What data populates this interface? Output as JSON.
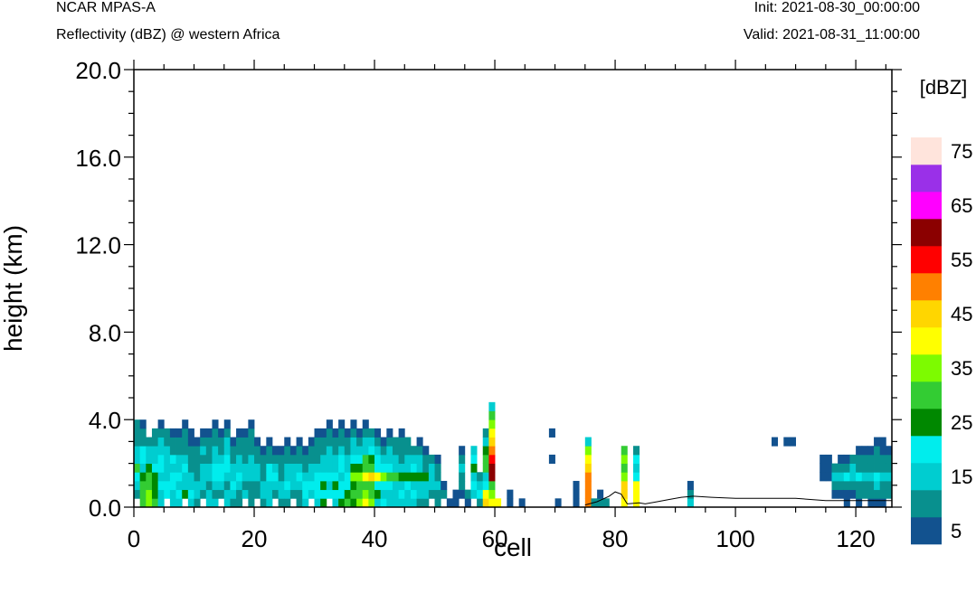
{
  "header": {
    "model": "NCAR MPAS-A",
    "field": "Reflectivity (dBZ) @ western Africa",
    "init": "Init: 2021-08-30_00:00:00",
    "valid": "Valid: 2021-08-31_11:00:00"
  },
  "chart_data": {
    "type": "heatmap",
    "title": "",
    "xlabel": "cell",
    "ylabel": "height (km)",
    "xlim": [
      0,
      126
    ],
    "ylim": [
      0,
      20
    ],
    "x_ticks": [
      "0",
      "20",
      "40",
      "60",
      "80",
      "100",
      "120"
    ],
    "y_ticks": [
      "0.0",
      "4.0",
      "8.0",
      "12.0",
      "16.0",
      "20.0"
    ],
    "grid": false,
    "colorbar": {
      "title": "[dBZ]",
      "placement": "right",
      "levels": [
        5,
        10,
        15,
        20,
        25,
        30,
        35,
        40,
        45,
        50,
        55,
        60,
        65,
        70,
        75
      ],
      "labels": [
        "5",
        "15",
        "25",
        "35",
        "45",
        "55",
        "65",
        "75"
      ],
      "colors": [
        "#12528f",
        "#08908e",
        "#00cdd0",
        "#00eded",
        "#008800",
        "#33cc33",
        "#7dfb00",
        "#ffff00",
        "#ffd600",
        "#ff8000",
        "#ff0000",
        "#8b0000",
        "#ff00ff",
        "#9a30e8",
        "#ffe4dc"
      ]
    },
    "cell_height_km": 0.4,
    "columns": [
      {
        "x": 0,
        "b": 1,
        "t": 10,
        "v": [
          10,
          15,
          20,
          30,
          15,
          15,
          10,
          10,
          10,
          5
        ]
      },
      {
        "x": 1,
        "b": 0,
        "t": 10,
        "v": [
          30,
          30,
          30,
          25,
          15,
          20,
          20,
          10,
          10,
          5
        ]
      },
      {
        "x": 2,
        "b": 0,
        "t": 8,
        "v": [
          35,
          35,
          30,
          30,
          25,
          15,
          15,
          10
        ]
      },
      {
        "x": 3,
        "b": 0,
        "t": 9,
        "v": [
          30,
          25,
          25,
          25,
          20,
          15,
          15,
          10,
          10
        ]
      },
      {
        "x": 4,
        "b": 0,
        "t": 10,
        "v": [
          15,
          15,
          20,
          15,
          20,
          20,
          15,
          15,
          10,
          5
        ]
      },
      {
        "x": 5,
        "b": 1,
        "t": 9,
        "v": [
          20,
          20,
          15,
          15,
          15,
          15,
          10,
          10
        ]
      },
      {
        "x": 6,
        "b": 0,
        "t": 9,
        "v": [
          15,
          15,
          20,
          20,
          15,
          20,
          10,
          10,
          5
        ]
      },
      {
        "x": 7,
        "b": 0,
        "t": 9,
        "v": [
          15,
          20,
          15,
          20,
          15,
          15,
          10,
          10,
          5
        ]
      },
      {
        "x": 8,
        "b": 1,
        "t": 10,
        "v": [
          25,
          15,
          15,
          20,
          15,
          10,
          10,
          10,
          5
        ]
      },
      {
        "x": 9,
        "b": 0,
        "t": 9,
        "v": [
          15,
          20,
          15,
          15,
          10,
          10,
          10,
          5,
          5
        ]
      },
      {
        "x": 10,
        "b": 0,
        "t": 8,
        "v": [
          10,
          15,
          15,
          10,
          10,
          10,
          10,
          5
        ]
      },
      {
        "x": 11,
        "b": 1,
        "t": 9,
        "v": [
          10,
          15,
          15,
          15,
          10,
          15,
          10,
          5
        ]
      },
      {
        "x": 12,
        "b": 0,
        "t": 9,
        "v": [
          15,
          15,
          10,
          15,
          15,
          10,
          10,
          10,
          5
        ]
      },
      {
        "x": 13,
        "b": 0,
        "t": 10,
        "v": [
          15,
          10,
          15,
          20,
          20,
          15,
          15,
          10,
          10,
          5
        ]
      },
      {
        "x": 14,
        "b": 1,
        "t": 9,
        "v": [
          10,
          15,
          20,
          20,
          15,
          10,
          10,
          5
        ]
      },
      {
        "x": 15,
        "b": 0,
        "t": 10,
        "v": [
          15,
          15,
          10,
          15,
          20,
          20,
          15,
          15,
          10,
          5
        ]
      },
      {
        "x": 16,
        "b": 0,
        "t": 8,
        "v": [
          10,
          15,
          20,
          15,
          15,
          10,
          10,
          5
        ]
      },
      {
        "x": 17,
        "b": 0,
        "t": 9,
        "v": [
          10,
          10,
          15,
          20,
          15,
          15,
          10,
          10,
          5
        ]
      },
      {
        "x": 18,
        "b": 1,
        "t": 9,
        "v": [
          15,
          10,
          15,
          15,
          10,
          10,
          10,
          5
        ]
      },
      {
        "x": 19,
        "b": 0,
        "t": 10,
        "v": [
          10,
          10,
          10,
          15,
          15,
          15,
          10,
          10,
          10,
          5
        ]
      },
      {
        "x": 20,
        "b": 1,
        "t": 8,
        "v": [
          10,
          10,
          15,
          15,
          10,
          10,
          5
        ]
      },
      {
        "x": 21,
        "b": 0,
        "t": 7,
        "v": [
          10,
          15,
          15,
          10,
          10,
          10,
          5
        ]
      },
      {
        "x": 22,
        "b": 0,
        "t": 8,
        "v": [
          15,
          15,
          15,
          20,
          20,
          10,
          10,
          5
        ]
      },
      {
        "x": 23,
        "b": 1,
        "t": 7,
        "v": [
          10,
          15,
          20,
          15,
          10,
          5
        ]
      },
      {
        "x": 24,
        "b": 0,
        "t": 7,
        "v": [
          10,
          15,
          15,
          10,
          10,
          10,
          5
        ]
      },
      {
        "x": 25,
        "b": 0,
        "t": 8,
        "v": [
          10,
          15,
          20,
          15,
          15,
          10,
          10,
          5
        ]
      },
      {
        "x": 26,
        "b": 1,
        "t": 7,
        "v": [
          10,
          15,
          15,
          15,
          10,
          5
        ]
      },
      {
        "x": 27,
        "b": 0,
        "t": 8,
        "v": [
          10,
          10,
          15,
          20,
          15,
          10,
          10,
          5
        ]
      },
      {
        "x": 28,
        "b": 0,
        "t": 7,
        "v": [
          15,
          20,
          20,
          15,
          10,
          10,
          5
        ]
      },
      {
        "x": 29,
        "b": 1,
        "t": 8,
        "v": [
          15,
          20,
          15,
          15,
          10,
          10,
          5
        ]
      },
      {
        "x": 30,
        "b": 0,
        "t": 9,
        "v": [
          15,
          20,
          20,
          20,
          15,
          10,
          10,
          10,
          5
        ]
      },
      {
        "x": 31,
        "b": 0,
        "t": 9,
        "v": [
          25,
          20,
          25,
          20,
          15,
          15,
          10,
          10,
          5
        ]
      },
      {
        "x": 32,
        "b": 1,
        "t": 10,
        "v": [
          20,
          15,
          20,
          15,
          15,
          15,
          10,
          10,
          5
        ]
      },
      {
        "x": 33,
        "b": 0,
        "t": 9,
        "v": [
          15,
          20,
          25,
          20,
          15,
          15,
          10,
          10,
          5
        ]
      },
      {
        "x": 34,
        "b": 0,
        "t": 10,
        "v": [
          25,
          20,
          20,
          15,
          20,
          20,
          15,
          10,
          10,
          5
        ]
      },
      {
        "x": 35,
        "b": 0,
        "t": 9,
        "v": [
          30,
          25,
          20,
          20,
          15,
          15,
          10,
          10,
          5
        ]
      },
      {
        "x": 36,
        "b": 0,
        "t": 10,
        "v": [
          25,
          30,
          25,
          35,
          25,
          20,
          15,
          15,
          10,
          5
        ]
      },
      {
        "x": 37,
        "b": 0,
        "t": 9,
        "v": [
          35,
          30,
          30,
          35,
          25,
          20,
          15,
          10,
          5
        ]
      },
      {
        "x": 38,
        "b": 0,
        "t": 10,
        "v": [
          40,
          35,
          30,
          40,
          30,
          30,
          15,
          15,
          10,
          5
        ]
      },
      {
        "x": 39,
        "b": 0,
        "t": 9,
        "v": [
          35,
          30,
          30,
          45,
          30,
          25,
          20,
          15,
          10
        ]
      },
      {
        "x": 40,
        "b": 0,
        "t": 9,
        "v": [
          15,
          25,
          20,
          40,
          20,
          20,
          15,
          10,
          5
        ]
      },
      {
        "x": 41,
        "b": 0,
        "t": 8,
        "v": [
          20,
          15,
          20,
          35,
          20,
          15,
          10,
          5
        ]
      },
      {
        "x": 42,
        "b": 0,
        "t": 9,
        "v": [
          15,
          15,
          20,
          30,
          20,
          15,
          15,
          10,
          5
        ]
      },
      {
        "x": 43,
        "b": 0,
        "t": 8,
        "v": [
          15,
          15,
          15,
          30,
          15,
          15,
          10,
          10
        ]
      },
      {
        "x": 44,
        "b": 0,
        "t": 9,
        "v": [
          15,
          20,
          15,
          25,
          15,
          10,
          10,
          10,
          5
        ]
      },
      {
        "x": 45,
        "b": 0,
        "t": 8,
        "v": [
          15,
          15,
          20,
          25,
          15,
          15,
          10,
          10
        ]
      },
      {
        "x": 46,
        "b": 0,
        "t": 7,
        "v": [
          15,
          20,
          15,
          25,
          20,
          15,
          10
        ]
      },
      {
        "x": 47,
        "b": 0,
        "t": 8,
        "v": [
          10,
          15,
          15,
          25,
          15,
          15,
          10,
          5
        ]
      },
      {
        "x": 48,
        "b": 0,
        "t": 7,
        "v": [
          10,
          15,
          15,
          25,
          10,
          10,
          5
        ]
      },
      {
        "x": 49,
        "b": 1,
        "t": 6,
        "v": [
          10,
          15,
          15,
          15,
          10
        ]
      },
      {
        "x": 50,
        "b": 0,
        "t": 6,
        "v": [
          10,
          10,
          15,
          10,
          10,
          5
        ]
      },
      {
        "x": 51,
        "b": 1,
        "t": 3,
        "v": [
          10,
          5
        ]
      },
      {
        "x": 52,
        "b": 0,
        "t": 1,
        "v": [
          5
        ]
      },
      {
        "x": 53,
        "b": 0,
        "t": 2,
        "v": [
          5,
          5
        ]
      },
      {
        "x": 54,
        "b": 1,
        "t": 7,
        "v": [
          5,
          10,
          10,
          15,
          10,
          5
        ]
      },
      {
        "x": 55,
        "b": 0,
        "t": 2,
        "v": [
          5,
          10
        ]
      },
      {
        "x": 56,
        "b": 1,
        "t": 7,
        "v": [
          15,
          20,
          15,
          25,
          20,
          15
        ]
      },
      {
        "x": 57,
        "b": 0,
        "t": 4,
        "v": [
          10,
          20,
          15,
          10
        ]
      },
      {
        "x": 58,
        "b": 0,
        "t": 9,
        "v": [
          45,
          40,
          20,
          15,
          30,
          30,
          25,
          15,
          10
        ]
      },
      {
        "x": 59,
        "b": 0,
        "t": 12,
        "v": [
          40,
          35,
          30,
          60,
          60,
          55,
          50,
          45,
          40,
          35,
          30,
          15
        ]
      },
      {
        "x": 60,
        "b": 0,
        "t": 1,
        "v": [
          40
        ]
      },
      {
        "x": 62,
        "b": 0,
        "t": 2,
        "v": [
          5,
          5
        ]
      },
      {
        "x": 64,
        "b": 0,
        "t": 1,
        "v": [
          5
        ]
      },
      {
        "x": 69,
        "b": 8,
        "t": 9,
        "v": [
          5
        ]
      },
      {
        "x": 69,
        "b": 5,
        "t": 6,
        "v": [
          5
        ]
      },
      {
        "x": 70,
        "b": 0,
        "t": 1,
        "v": [
          5
        ]
      },
      {
        "x": 73,
        "b": 0,
        "t": 3,
        "v": [
          5,
          5,
          5
        ]
      },
      {
        "x": 75,
        "b": 0,
        "t": 8,
        "v": [
          50,
          50,
          50,
          50,
          45,
          40,
          35,
          15
        ]
      },
      {
        "x": 76,
        "b": 0,
        "t": 1,
        "v": [
          10
        ]
      },
      {
        "x": 77,
        "b": 0,
        "t": 2,
        "v": [
          10,
          5
        ]
      },
      {
        "x": 78,
        "b": 0,
        "t": 1,
        "v": [
          10
        ]
      },
      {
        "x": 81,
        "b": 0,
        "t": 7,
        "v": [
          40,
          45,
          45,
          35,
          30,
          35,
          30
        ]
      },
      {
        "x": 83,
        "b": 0,
        "t": 7,
        "v": [
          40,
          40,
          40,
          20,
          15,
          20,
          10
        ]
      },
      {
        "x": 92,
        "b": 0,
        "t": 3,
        "v": [
          15,
          10,
          5
        ]
      },
      {
        "x": 106,
        "b": 7,
        "t": 8,
        "v": [
          5
        ]
      },
      {
        "x": 108,
        "b": 7,
        "t": 8,
        "v": [
          5
        ]
      },
      {
        "x": 109,
        "b": 7,
        "t": 8,
        "v": [
          5
        ]
      },
      {
        "x": 114,
        "b": 3,
        "t": 6,
        "v": [
          5,
          5,
          5
        ]
      },
      {
        "x": 115,
        "b": 3,
        "t": 6,
        "v": [
          5,
          5,
          5
        ]
      },
      {
        "x": 116,
        "b": 1,
        "t": 5,
        "v": [
          5,
          10,
          15,
          10
        ]
      },
      {
        "x": 117,
        "b": 1,
        "t": 6,
        "v": [
          5,
          10,
          15,
          10,
          5
        ]
      },
      {
        "x": 118,
        "b": 0,
        "t": 6,
        "v": [
          5,
          5,
          10,
          20,
          10,
          5
        ]
      },
      {
        "x": 119,
        "b": 1,
        "t": 6,
        "v": [
          5,
          10,
          15,
          15,
          10
        ]
      },
      {
        "x": 120,
        "b": 0,
        "t": 7,
        "v": [
          5,
          10,
          10,
          20,
          10,
          10,
          5
        ]
      },
      {
        "x": 121,
        "b": 1,
        "t": 7,
        "v": [
          10,
          10,
          15,
          10,
          10,
          5
        ]
      },
      {
        "x": 122,
        "b": 0,
        "t": 7,
        "v": [
          5,
          10,
          10,
          15,
          10,
          10,
          5
        ]
      },
      {
        "x": 123,
        "b": 0,
        "t": 8,
        "v": [
          5,
          10,
          15,
          20,
          10,
          10,
          10,
          5
        ]
      },
      {
        "x": 124,
        "b": 0,
        "t": 8,
        "v": [
          5,
          10,
          10,
          15,
          10,
          10,
          5,
          5
        ]
      },
      {
        "x": 125,
        "b": 1,
        "t": 7,
        "v": [
          10,
          10,
          15,
          10,
          10,
          5
        ]
      }
    ],
    "terrain": [
      [
        75,
        0.1
      ],
      [
        77,
        0.25
      ],
      [
        79,
        0.5
      ],
      [
        80,
        0.7
      ],
      [
        81,
        0.6
      ],
      [
        82,
        0.15
      ],
      [
        84,
        0.2
      ],
      [
        85,
        0.15
      ],
      [
        87,
        0.25
      ],
      [
        89,
        0.35
      ],
      [
        91,
        0.45
      ],
      [
        93,
        0.5
      ],
      [
        96,
        0.45
      ],
      [
        100,
        0.4
      ],
      [
        105,
        0.4
      ],
      [
        110,
        0.4
      ],
      [
        115,
        0.3
      ],
      [
        120,
        0.3
      ],
      [
        126,
        0.3
      ]
    ]
  }
}
